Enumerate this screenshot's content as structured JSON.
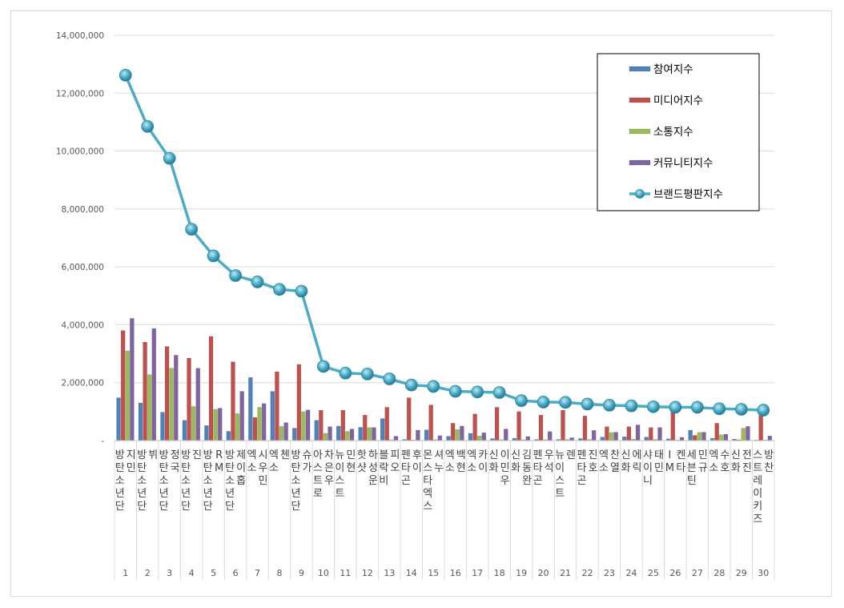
{
  "chart_data": {
    "type": "bar",
    "title": "",
    "xlabel": "",
    "ylabel": "",
    "ylim": [
      0,
      14000000
    ],
    "y_ticks": [
      "-",
      "2,000,000",
      "4,000,000",
      "6,000,000",
      "8,000,000",
      "10,000,000",
      "12,000,000",
      "14,000,000"
    ],
    "grid": "horizontal",
    "legend_position": "top-right",
    "ranks": [
      "1",
      "2",
      "3",
      "4",
      "5",
      "6",
      "7",
      "8",
      "9",
      "10",
      "11",
      "12",
      "13",
      "14",
      "15",
      "16",
      "17",
      "18",
      "19",
      "20",
      "21",
      "22",
      "23",
      "24",
      "25",
      "26",
      "27",
      "28",
      "29",
      "30"
    ],
    "categories": [
      "방탄소년단 지민",
      "방탄소년단 뷔",
      "방탄소년단 정국",
      "방탄소년단 진",
      "방탄소년단 RM",
      "방탄소년단 제이홉",
      "엑소 시우민",
      "엑소 첸",
      "방탄소년단 슈가",
      "아스트로 차은우",
      "뉴이스트 민현",
      "핫샷 하성운",
      "블락비 피오",
      "펜타곤 후이",
      "몬스타엑스 셔누",
      "엑소 백현",
      "엑소 카이",
      "신화 이민우",
      "신화 김동완",
      "펜타곤 우석",
      "뉴이스트 렌",
      "펜타곤 진호",
      "엑소 찬열",
      "신화 에릭",
      "샤이니 태민",
      "IM 켄타",
      "세븐틴 민규",
      "엑소 수호",
      "신화 전진",
      "스트레이키즈 방찬"
    ],
    "series": [
      {
        "name": "참여지수",
        "color": "#4f81bd",
        "type": "bar",
        "values": [
          1480000,
          1300000,
          980000,
          700000,
          520000,
          320000,
          2180000,
          1700000,
          430000,
          700000,
          500000,
          460000,
          760000,
          40000,
          370000,
          150000,
          250000,
          70000,
          80000,
          40000,
          40000,
          70000,
          120000,
          130000,
          120000,
          60000,
          360000,
          80000,
          50000,
          20000
        ]
      },
      {
        "name": "미디어지수",
        "color": "#c0504d",
        "type": "bar",
        "values": [
          3800000,
          3400000,
          3250000,
          2850000,
          3600000,
          2720000,
          800000,
          2380000,
          2630000,
          1050000,
          1050000,
          880000,
          1150000,
          1480000,
          1230000,
          600000,
          920000,
          1150000,
          1000000,
          880000,
          1050000,
          850000,
          480000,
          480000,
          450000,
          1000000,
          180000,
          600000,
          30000,
          1000000
        ]
      },
      {
        "name": "소통지수",
        "color": "#9bbb59",
        "type": "bar",
        "values": [
          3100000,
          2280000,
          2500000,
          1180000,
          1080000,
          930000,
          1150000,
          490000,
          1000000,
          250000,
          320000,
          450000,
          30000,
          20000,
          30000,
          380000,
          160000,
          30000,
          30000,
          30000,
          40000,
          40000,
          280000,
          50000,
          40000,
          20000,
          280000,
          200000,
          430000,
          20000
        ]
      },
      {
        "name": "커뮤니티지수",
        "color": "#8064a2",
        "type": "bar",
        "values": [
          4220000,
          3870000,
          2950000,
          2500000,
          1120000,
          1700000,
          1280000,
          620000,
          1060000,
          480000,
          400000,
          450000,
          150000,
          360000,
          170000,
          500000,
          270000,
          400000,
          140000,
          310000,
          100000,
          350000,
          290000,
          540000,
          450000,
          110000,
          290000,
          220000,
          490000,
          160000
        ]
      },
      {
        "name": "브랜드평판지수",
        "color": "#4bacc6",
        "type": "line",
        "values": [
          12620000,
          10850000,
          9750000,
          7300000,
          6380000,
          5700000,
          5480000,
          5220000,
          5160000,
          2560000,
          2330000,
          2300000,
          2130000,
          1920000,
          1870000,
          1700000,
          1680000,
          1660000,
          1380000,
          1330000,
          1320000,
          1260000,
          1220000,
          1200000,
          1170000,
          1150000,
          1150000,
          1100000,
          1080000,
          1050000
        ]
      }
    ]
  }
}
